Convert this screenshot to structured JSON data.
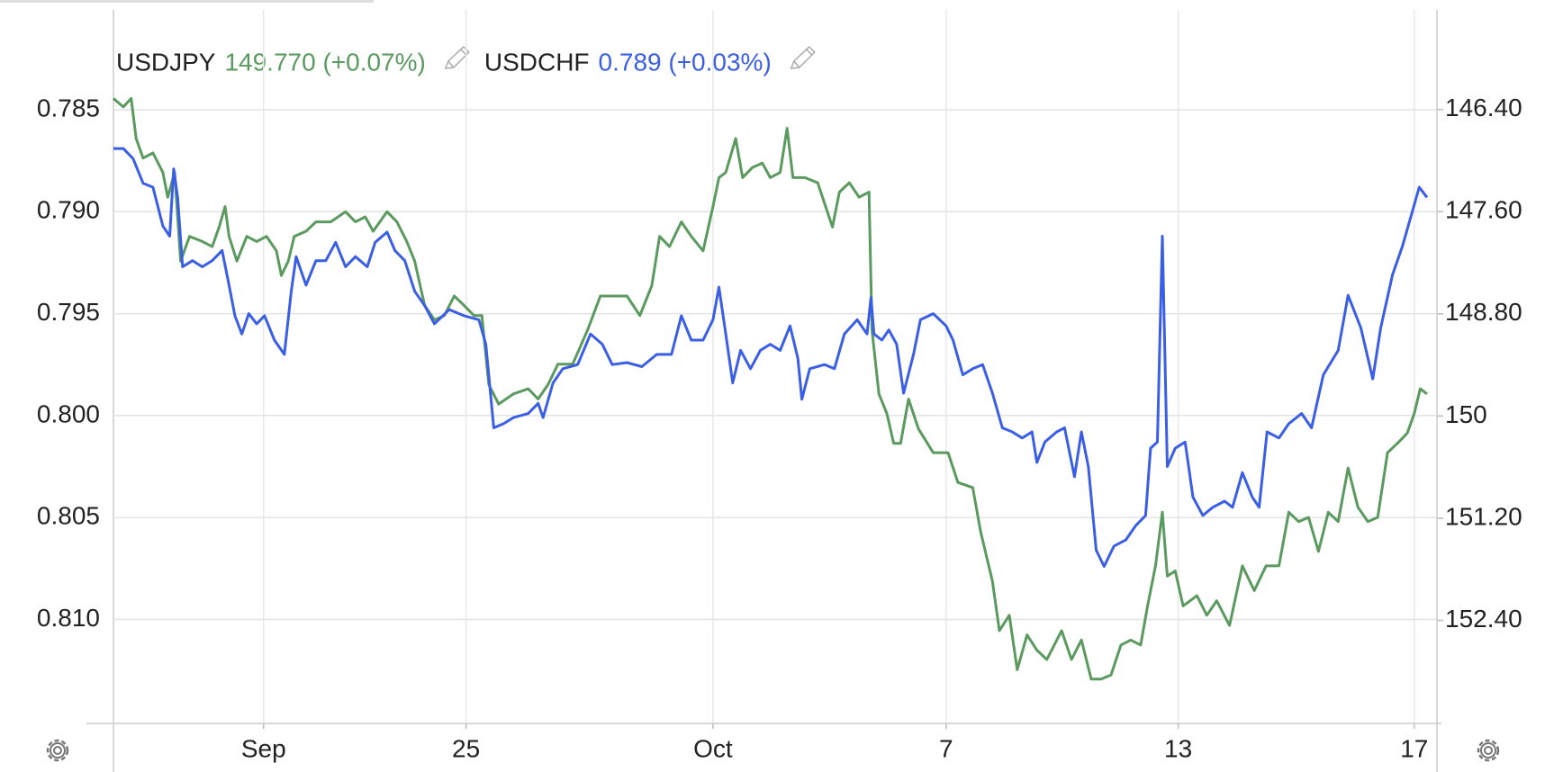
{
  "chart_data": {
    "type": "line",
    "series": [
      {
        "name": "USDJPY",
        "legend_value": "149.770 (+0.07%)",
        "color": "#5b9a5f",
        "axis": "y2",
        "x": [
          0,
          10,
          18,
          23,
          30,
          40,
          50,
          55,
          62,
          68,
          77,
          90,
          100,
          107,
          113,
          117,
          125,
          135,
          145,
          155,
          165,
          170,
          177,
          183,
          195,
          205,
          220,
          235,
          245,
          255,
          263,
          277,
          287,
          297,
          305,
          315,
          325,
          335,
          345,
          355,
          365,
          373,
          380,
          390,
          405,
          420,
          430,
          440,
          450,
          465,
          480,
          493,
          505,
          520,
          533,
          545,
          553,
          563,
          575,
          585,
          597,
          607,
          613,
          620,
          630,
          637,
          647,
          657,
          665,
          675,
          682,
          688,
          700,
          713,
          728,
          735,
          745,
          755,
          765,
          768,
          775,
          783,
          790,
          797,
          805,
          815,
          830,
          845,
          855,
          870,
          878,
          890,
          897,
          907,
          915,
          925,
          935,
          945,
          960,
          970,
          980,
          990,
          1000,
          1010,
          1020,
          1030,
          1040,
          1047,
          1055,
          1062,
          1067,
          1075,
          1083,
          1097,
          1107,
          1117,
          1130,
          1143,
          1155,
          1167,
          1180,
          1190,
          1200,
          1210,
          1220,
          1230,
          1240,
          1250,
          1260,
          1270,
          1280,
          1290,
          1300,
          1310,
          1317,
          1323,
          1330
        ],
        "values": [
          146.27,
          146.37,
          146.27,
          146.74,
          146.97,
          146.91,
          147.14,
          147.43,
          147.14,
          148.18,
          147.89,
          147.95,
          148.01,
          147.78,
          147.54,
          147.89,
          148.18,
          147.89,
          147.95,
          147.89,
          148.06,
          148.35,
          148.18,
          147.89,
          147.83,
          147.72,
          147.72,
          147.6,
          147.72,
          147.66,
          147.83,
          147.6,
          147.72,
          147.95,
          148.18,
          148.7,
          148.87,
          148.82,
          148.59,
          148.7,
          148.82,
          148.82,
          149.63,
          149.86,
          149.74,
          149.68,
          149.8,
          149.63,
          149.39,
          149.39,
          148.99,
          148.59,
          148.59,
          148.59,
          148.82,
          148.47,
          147.89,
          148.01,
          147.72,
          147.89,
          148.06,
          147.54,
          147.2,
          147.14,
          146.74,
          147.2,
          147.08,
          147.03,
          147.2,
          147.14,
          146.62,
          147.2,
          147.2,
          147.26,
          147.78,
          147.37,
          147.26,
          147.43,
          147.37,
          148.99,
          149.74,
          149.97,
          150.32,
          150.32,
          149.8,
          150.15,
          150.43,
          150.43,
          150.78,
          150.84,
          151.36,
          151.94,
          152.52,
          152.34,
          152.98,
          152.57,
          152.75,
          152.86,
          152.52,
          152.86,
          152.63,
          153.09,
          153.09,
          153.04,
          152.69,
          152.63,
          152.69,
          152.23,
          151.76,
          151.13,
          151.88,
          151.82,
          152.23,
          152.11,
          152.34,
          152.17,
          152.46,
          151.76,
          152.05,
          151.76,
          151.76,
          151.13,
          151.24,
          151.19,
          151.59,
          151.13,
          151.24,
          150.61,
          151.07,
          151.24,
          151.19,
          150.43,
          150.32,
          150.2,
          149.97,
          149.68,
          149.74
        ]
      },
      {
        "name": "USDCHF",
        "legend_value": "0.789 (+0.03%)",
        "color": "#3a5ee6",
        "x": [
          0,
          10,
          20,
          30,
          40,
          50,
          57,
          61,
          65,
          70,
          80,
          90,
          100,
          110,
          117,
          123,
          130,
          137,
          145,
          153,
          163,
          173,
          180,
          185,
          195,
          205,
          215,
          225,
          235,
          245,
          257,
          265,
          277,
          285,
          295,
          305,
          315,
          325,
          340,
          355,
          370,
          377,
          385,
          395,
          405,
          420,
          430,
          435,
          445,
          455,
          470,
          483,
          495,
          505,
          520,
          535,
          550,
          565,
          575,
          585,
          597,
          607,
          613,
          620,
          627,
          635,
          645,
          655,
          665,
          675,
          685,
          693,
          697,
          705,
          720,
          730,
          740,
          753,
          763,
          767,
          770,
          778,
          785,
          793,
          800,
          810,
          817,
          830,
          843,
          850,
          860,
          870,
          880,
          890,
          900,
          910,
          920,
          930,
          935,
          943,
          955,
          963,
          973,
          980,
          987,
          995,
          1003,
          1013,
          1025,
          1035,
          1045,
          1050,
          1057,
          1062,
          1067,
          1075,
          1085,
          1093,
          1103,
          1113,
          1125,
          1133,
          1143,
          1153,
          1160,
          1168,
          1180,
          1190,
          1203,
          1213,
          1225,
          1240,
          1250,
          1263,
          1275,
          1283,
          1295,
          1305,
          1315,
          1322,
          1330
        ],
        "values": [
          0.7869,
          0.7869,
          0.7874,
          0.7886,
          0.7888,
          0.7907,
          0.7912,
          0.7879,
          0.7893,
          0.7927,
          0.7924,
          0.7927,
          0.7924,
          0.7919,
          0.7936,
          0.7951,
          0.796,
          0.795,
          0.7955,
          0.7951,
          0.7963,
          0.797,
          0.7939,
          0.7922,
          0.7936,
          0.7924,
          0.7924,
          0.7915,
          0.7927,
          0.7922,
          0.7927,
          0.7915,
          0.791,
          0.7919,
          0.7924,
          0.7939,
          0.7946,
          0.7955,
          0.7948,
          0.7951,
          0.7953,
          0.7965,
          0.8006,
          0.8004,
          0.8001,
          0.7999,
          0.7994,
          0.8001,
          0.7984,
          0.7977,
          0.7975,
          0.796,
          0.7965,
          0.7975,
          0.7974,
          0.7976,
          0.797,
          0.797,
          0.7951,
          0.7963,
          0.7963,
          0.7953,
          0.7937,
          0.796,
          0.7984,
          0.7968,
          0.7977,
          0.7968,
          0.7965,
          0.7968,
          0.7956,
          0.7972,
          0.7992,
          0.7977,
          0.7975,
          0.7977,
          0.796,
          0.7953,
          0.796,
          0.7942,
          0.796,
          0.7963,
          0.7958,
          0.7965,
          0.7989,
          0.797,
          0.7953,
          0.795,
          0.7956,
          0.7963,
          0.798,
          0.7977,
          0.7975,
          0.7989,
          0.8006,
          0.8008,
          0.8011,
          0.8008,
          0.8023,
          0.8013,
          0.8008,
          0.8006,
          0.803,
          0.8008,
          0.8025,
          0.8066,
          0.8074,
          0.8064,
          0.8061,
          0.8054,
          0.8049,
          0.8016,
          0.8013,
          0.7912,
          0.8025,
          0.8016,
          0.8013,
          0.804,
          0.8049,
          0.8045,
          0.8042,
          0.8045,
          0.8028,
          0.804,
          0.8045,
          0.8008,
          0.8011,
          0.8004,
          0.7999,
          0.8006,
          0.798,
          0.7968,
          0.7941,
          0.7957,
          0.7982,
          0.7957,
          0.7931,
          0.7917,
          0.79,
          0.7888,
          0.7893
        ]
      }
    ],
    "xlim": [
      0,
      1340
    ],
    "xticks": [
      {
        "value": 152,
        "label": "Sep"
      },
      {
        "value": 357,
        "label": "25"
      },
      {
        "value": 607,
        "label": "Oct"
      },
      {
        "value": 843,
        "label": "7"
      },
      {
        "value": 1078,
        "label": "13"
      },
      {
        "value": 1317,
        "label": "17"
      }
    ],
    "ylim": [
      0.8151,
      0.7801
    ],
    "yticks": [
      0.785,
      {
        "value": 0.79,
        "label": "0.790"
      },
      0.795,
      {
        "value": 0.8,
        "label": "0.800"
      },
      0.805,
      {
        "value": 0.81,
        "label": "0.810"
      }
    ],
    "y2lim": [
      153.61,
      145.23
    ],
    "y2ticks": [
      {
        "value": 146.4,
        "label": "146.40"
      },
      {
        "value": 147.6,
        "label": "147.60"
      },
      {
        "value": 148.8,
        "label": "148.80"
      },
      150,
      {
        "value": 151.2,
        "label": "151.20"
      },
      {
        "value": 152.4,
        "label": "152.40"
      }
    ],
    "grid": true
  }
}
